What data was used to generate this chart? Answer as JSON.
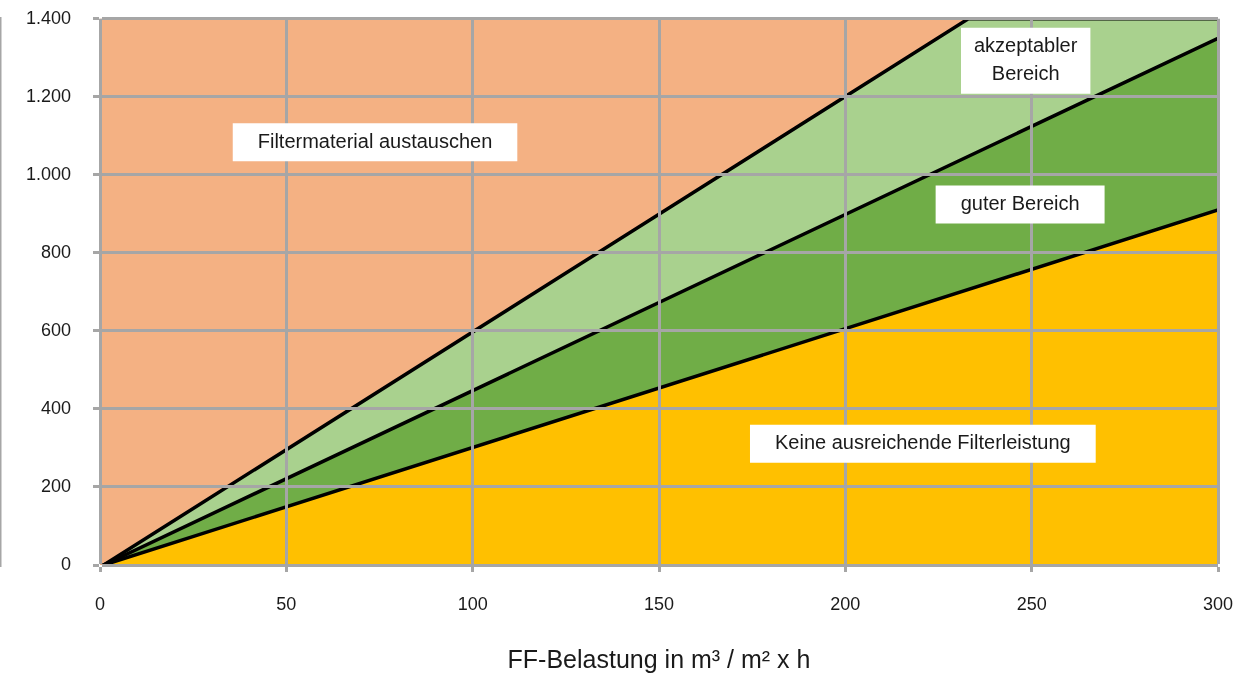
{
  "chart_data": {
    "type": "area",
    "xlabel": "FF-Belastung in m³ / m² x h",
    "xlim": [
      0,
      300
    ],
    "xticks": [
      0,
      50,
      100,
      150,
      200,
      250,
      300
    ],
    "ylim": [
      0,
      1400
    ],
    "yticks": [
      0,
      200,
      400,
      600,
      800,
      {
        "value": 1000,
        "label": "1.000"
      },
      {
        "value": 1200,
        "label": "1.200"
      },
      {
        "value": 1400,
        "label": "1.400"
      }
    ],
    "grid": true,
    "marker": "none",
    "bands": [
      {
        "axis": "y",
        "from": 0,
        "to": 1400,
        "color": "#f4b183"
      }
    ],
    "series": [
      {
        "color": "#ffc000",
        "x": [
          1,
          300
        ],
        "values": [
          0,
          910
        ]
      },
      {
        "color": "#70ad47",
        "x": [
          1,
          300
        ],
        "values": [
          0,
          1350
        ]
      },
      {
        "color": "#a9d18e",
        "x": [
          1,
          233,
          300
        ],
        "values": [
          0,
          1400,
          1400
        ]
      }
    ],
    "annotations": [
      "Filtermaterial austauschen",
      "akzeptabler\nBereich",
      "guter Bereich",
      "Keine ausreichende Filterleistung"
    ]
  }
}
